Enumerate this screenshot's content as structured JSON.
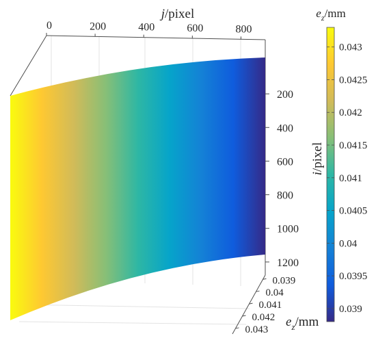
{
  "chart_data": {
    "type": "surface",
    "z_values_description_unit": "mm",
    "x_axis": {
      "label_var": "j",
      "label_unit": "/pixel",
      "ticks": [
        0,
        200,
        400,
        600,
        800
      ],
      "range": [
        0,
        900
      ]
    },
    "y_axis": {
      "label_var": "i",
      "label_unit": "/pixel",
      "ticks": [
        200,
        400,
        600,
        800,
        1000,
        1200
      ],
      "range": [
        0,
        1400
      ]
    },
    "z_axis": {
      "label_var": "e",
      "label_sub": "z",
      "label_unit": "/mm",
      "ticks": [
        "0.039",
        "0.04",
        "0.041",
        "0.042",
        "0.043"
      ],
      "range": [
        0.0388,
        0.0434
      ]
    },
    "colorbar": {
      "label_var": "e",
      "label_sub": "z",
      "label_unit": "/mm",
      "ticks": [
        "0.043",
        "0.0425",
        "0.042",
        "0.0415",
        "0.041",
        "0.0405",
        "0.04",
        "0.0395",
        "0.039"
      ],
      "range": [
        0.0388,
        0.0433
      ],
      "colormap": "parula",
      "colors": [
        "#352a87",
        "#0f5cdd",
        "#1481d6",
        "#06a4ca",
        "#2eb7a4",
        "#87bf77",
        "#d1bb59",
        "#fec832",
        "#f9fb0e"
      ]
    },
    "surface": {
      "description_trend": "e_z decreases roughly linearly with j, constant with i",
      "e_z_at_j": [
        {
          "j": 0,
          "e_z": 0.0433
        },
        {
          "j": 900,
          "e_z": 0.0388
        }
      ]
    }
  }
}
